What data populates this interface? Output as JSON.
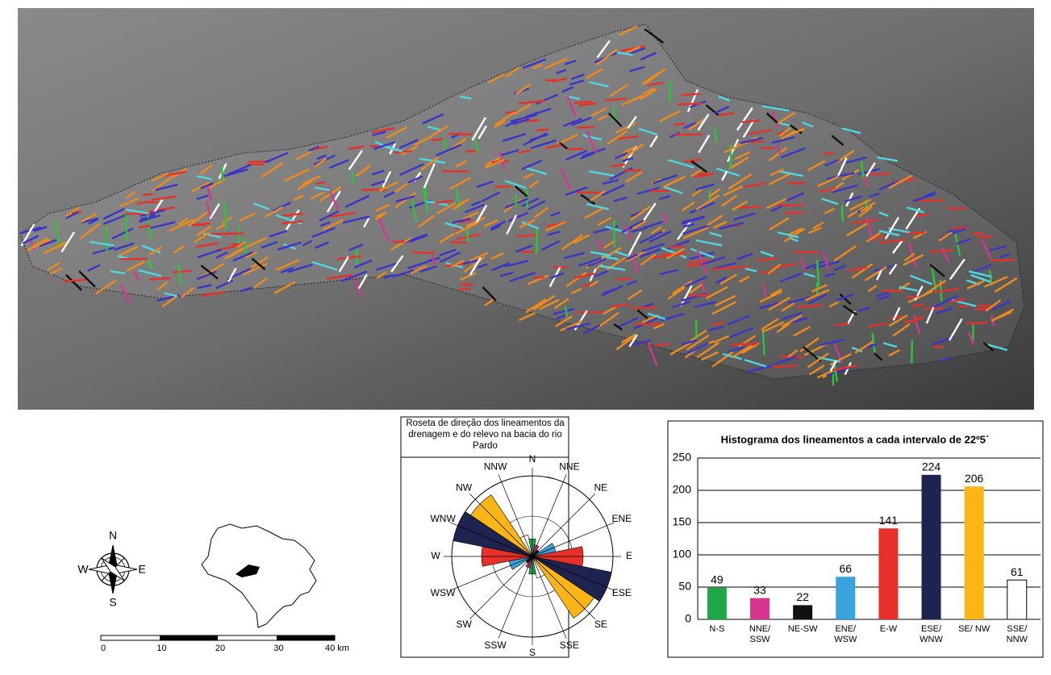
{
  "map": {
    "compass": {
      "north": "N",
      "south": "S",
      "east": "E",
      "west": "W"
    },
    "scale_labels": [
      "0",
      "10",
      "20",
      "30",
      "40 km"
    ]
  },
  "chart_data": [
    {
      "type": "bar",
      "title": "Histograma dos lineamentos a cada intervalo de 22º5´",
      "categories": [
        "N-S",
        "NNE/ SSW",
        "NE-SW",
        "ENE/ WSW",
        "E-W",
        "ESE/ WNW",
        "SE/ NW",
        "SSE/ NNW"
      ],
      "values": [
        49,
        33,
        22,
        66,
        141,
        224,
        206,
        61
      ],
      "colors": [
        "#1fa84a",
        "#d63590",
        "#111111",
        "#3aa3dc",
        "#e8302a",
        "#1f2350",
        "#fbb516",
        "#ffffff"
      ],
      "ylim": [
        0,
        250
      ],
      "yticks": [
        0,
        50,
        100,
        150,
        200,
        250
      ],
      "grid": true
    },
    {
      "type": "rose",
      "title": "Roseta de direção dos lineamentos da drenagem e do relevo na bacia do rio Pardo",
      "directions": [
        "N",
        "NNE",
        "NE",
        "ENE",
        "E",
        "ESE",
        "SE",
        "SSE",
        "S",
        "SSW",
        "SW",
        "WSW",
        "W",
        "WNW",
        "NW",
        "NNW"
      ],
      "rlim": [
        0,
        224
      ]
    }
  ]
}
